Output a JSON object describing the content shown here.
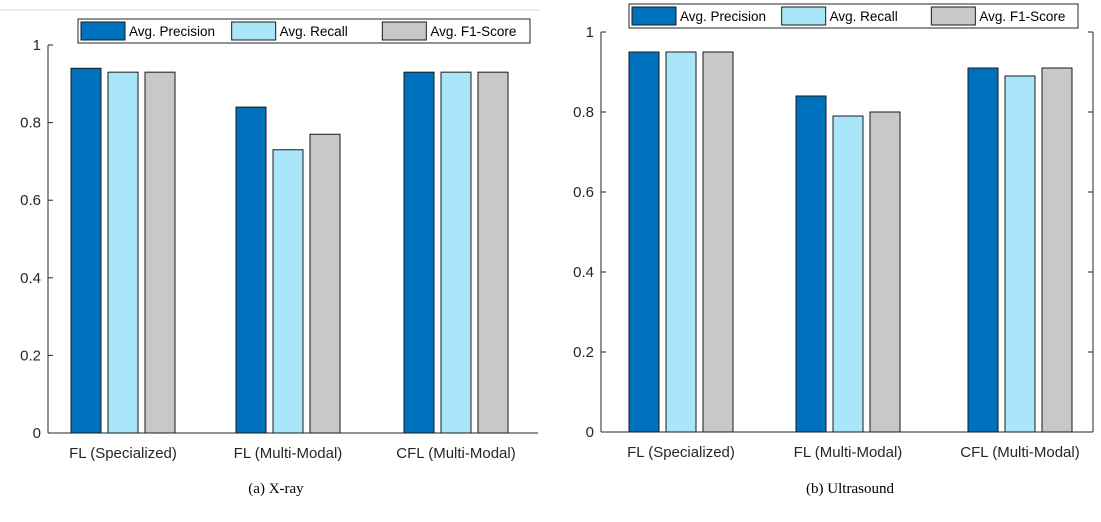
{
  "chart_data": [
    {
      "type": "bar",
      "caption": "(a)  X-ray",
      "categories": [
        "FL (Specialized)",
        "FL (Multi-Modal)",
        "CFL (Multi-Modal)"
      ],
      "series": [
        {
          "name": "Avg. Precision",
          "color": "#0072BD",
          "values": [
            0.94,
            0.84,
            0.93
          ]
        },
        {
          "name": "Avg. Recall",
          "color": "#AAE6FA",
          "values": [
            0.93,
            0.73,
            0.93
          ]
        },
        {
          "name": "Avg. F1-Score",
          "color": "#C8C8C8",
          "values": [
            0.93,
            0.77,
            0.93
          ]
        }
      ],
      "ylim": [
        0,
        1
      ],
      "yticks": [
        0,
        0.2,
        0.4,
        0.6,
        0.8,
        1
      ],
      "ytick_labels": [
        "0",
        "0.2",
        "0.4",
        "0.6",
        "0.8",
        "1"
      ],
      "title": "",
      "xlabel": "",
      "ylabel": "",
      "legend": "top",
      "grid": false
    },
    {
      "type": "bar",
      "caption": "(b)  Ultrasound",
      "categories": [
        "FL (Specialized)",
        "FL (Multi-Modal)",
        "CFL (Multi-Modal)"
      ],
      "series": [
        {
          "name": "Avg. Precision",
          "color": "#0072BD",
          "values": [
            0.95,
            0.84,
            0.91
          ]
        },
        {
          "name": "Avg. Recall",
          "color": "#AAE6FA",
          "values": [
            0.95,
            0.79,
            0.89
          ]
        },
        {
          "name": "Avg. F1-Score",
          "color": "#C8C8C8",
          "values": [
            0.95,
            0.8,
            0.91
          ]
        }
      ],
      "ylim": [
        0,
        1
      ],
      "yticks": [
        0,
        0.2,
        0.4,
        0.6,
        0.8,
        1
      ],
      "ytick_labels": [
        "0",
        "0.2",
        "0.4",
        "0.6",
        "0.8",
        "1"
      ],
      "title": "",
      "xlabel": "",
      "ylabel": "",
      "legend": "top",
      "grid": false
    }
  ]
}
